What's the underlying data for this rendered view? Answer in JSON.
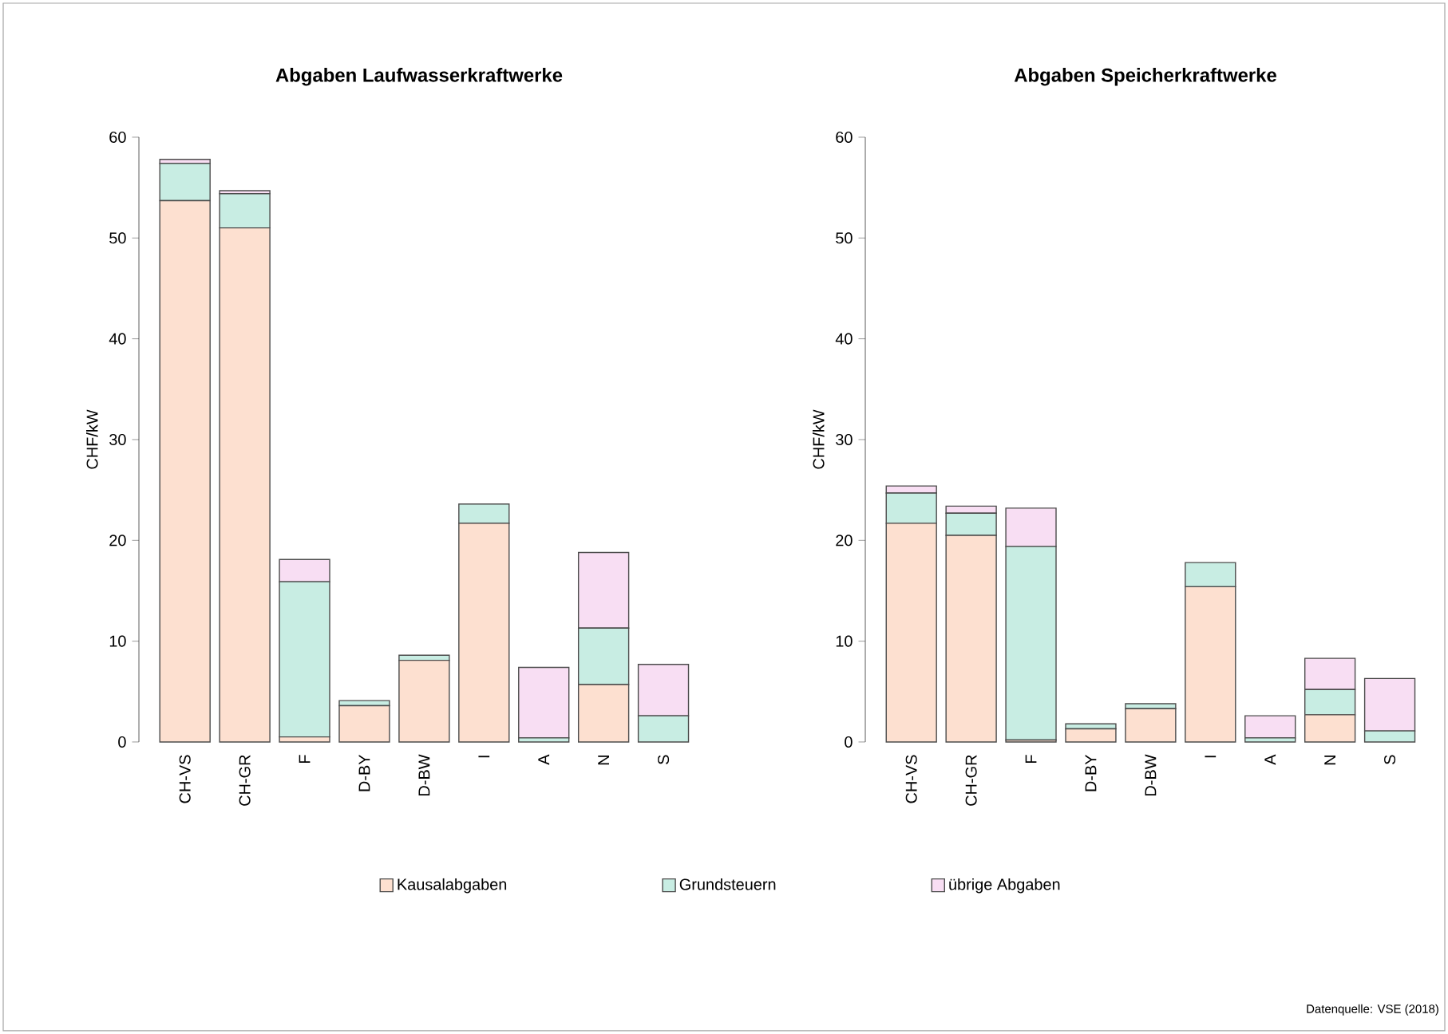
{
  "chart_data": [
    {
      "type": "bar",
      "stacked": true,
      "title": "Abgaben Laufwasserkraftwerke",
      "ylabel": "CHF/kW",
      "categories": [
        "CH-VS",
        "CH-GR",
        "F",
        "D-BY",
        "D-BW",
        "I",
        "A",
        "N",
        "S"
      ],
      "ylim": [
        0,
        60
      ],
      "yticks": [
        0,
        10,
        20,
        30,
        40,
        50,
        60
      ],
      "legend": "bottom",
      "series": [
        {
          "name": "Kausalabgaben",
          "color": "#fde0d0",
          "values": [
            53.7,
            51.0,
            0.5,
            3.6,
            8.1,
            21.7,
            0,
            5.7,
            0
          ]
        },
        {
          "name": "Grundsteuern",
          "color": "#c8ede3",
          "values": [
            3.7,
            3.4,
            15.4,
            0.5,
            0.5,
            1.9,
            0.4,
            5.6,
            2.6
          ]
        },
        {
          "name": "übrige Abgaben",
          "color": "#f8def3",
          "values": [
            0.4,
            0.3,
            2.2,
            0,
            0,
            0,
            7.0,
            7.5,
            5.1
          ]
        }
      ]
    },
    {
      "type": "bar",
      "stacked": true,
      "title": "Abgaben Speicherkraftwerke",
      "ylabel": "CHF/kW",
      "categories": [
        "CH-VS",
        "CH-GR",
        "F",
        "D-BY",
        "D-BW",
        "I",
        "A",
        "N",
        "S"
      ],
      "ylim": [
        0,
        60
      ],
      "yticks": [
        0,
        10,
        20,
        30,
        40,
        50,
        60
      ],
      "annotations": [
        "Datenquelle: VSE (2018)"
      ],
      "series": [
        {
          "color": "#fde0d0",
          "values": [
            21.7,
            20.5,
            0.2,
            1.3,
            3.3,
            15.4,
            0,
            2.7,
            0
          ]
        },
        {
          "color": "#c8ede3",
          "values": [
            3.0,
            2.2,
            19.2,
            0.5,
            0.5,
            2.4,
            0.4,
            2.5,
            1.1
          ]
        },
        {
          "color": "#f8def3",
          "values": [
            0.7,
            0.7,
            3.8,
            0,
            0,
            0,
            2.2,
            3.1,
            5.2
          ]
        }
      ]
    }
  ]
}
